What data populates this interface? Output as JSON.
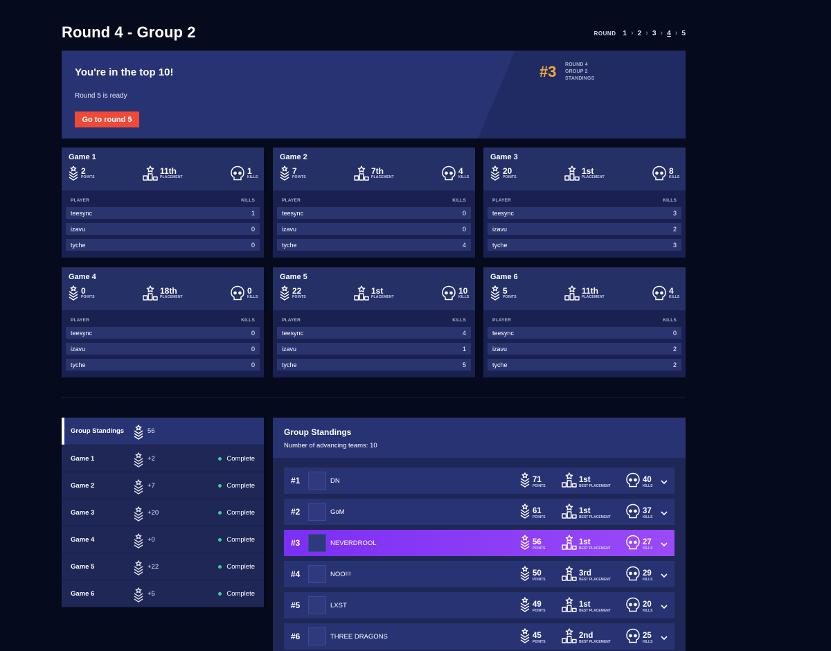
{
  "header": {
    "title": "Round 4 - Group 2",
    "round_label": "ROUND",
    "rounds": [
      "1",
      "2",
      "3",
      "4",
      "5"
    ],
    "active_round": "4"
  },
  "banner": {
    "headline": "You're in the top 10!",
    "subtext": "Round 5 is ready",
    "button": "Go to round 5",
    "rank": "#3",
    "rank_lines": [
      "ROUND 4",
      "GROUP 2",
      "STANDINGS"
    ]
  },
  "labels": {
    "points": "POINTS",
    "placement": "PLACEMENT",
    "kills": "KILLS",
    "player": "PLAYER",
    "best_placement": "BEST PLACEMENT"
  },
  "games": [
    {
      "name": "Game 1",
      "points": "2",
      "placement": "11th",
      "kills": "1",
      "players": [
        {
          "name": "teesync",
          "kills": "1"
        },
        {
          "name": "izavu",
          "kills": "0"
        },
        {
          "name": "tyche",
          "kills": "0"
        }
      ]
    },
    {
      "name": "Game 2",
      "points": "7",
      "placement": "7th",
      "kills": "4",
      "players": [
        {
          "name": "teesync",
          "kills": "0"
        },
        {
          "name": "izavu",
          "kills": "0"
        },
        {
          "name": "tyche",
          "kills": "4"
        }
      ]
    },
    {
      "name": "Game 3",
      "points": "20",
      "placement": "1st",
      "kills": "8",
      "players": [
        {
          "name": "teesync",
          "kills": "3"
        },
        {
          "name": "izavu",
          "kills": "2"
        },
        {
          "name": "tyche",
          "kills": "3"
        }
      ]
    },
    {
      "name": "Game 4",
      "points": "0",
      "placement": "18th",
      "kills": "0",
      "players": [
        {
          "name": "teesync",
          "kills": "0"
        },
        {
          "name": "izavu",
          "kills": "0"
        },
        {
          "name": "tyche",
          "kills": "0"
        }
      ]
    },
    {
      "name": "Game 5",
      "points": "22",
      "placement": "1st",
      "kills": "10",
      "players": [
        {
          "name": "teesync",
          "kills": "4"
        },
        {
          "name": "izavu",
          "kills": "1"
        },
        {
          "name": "tyche",
          "kills": "5"
        }
      ]
    },
    {
      "name": "Game 6",
      "points": "5",
      "placement": "11th",
      "kills": "4",
      "players": [
        {
          "name": "teesync",
          "kills": "0"
        },
        {
          "name": "izavu",
          "kills": "2"
        },
        {
          "name": "tyche",
          "kills": "2"
        }
      ]
    }
  ],
  "sidebar": {
    "items": [
      {
        "name": "Group Standings",
        "points": "56",
        "status": ""
      },
      {
        "name": "Game 1",
        "points": "+2",
        "status": "Complete"
      },
      {
        "name": "Game 2",
        "points": "+7",
        "status": "Complete"
      },
      {
        "name": "Game 3",
        "points": "+20",
        "status": "Complete"
      },
      {
        "name": "Game 4",
        "points": "+0",
        "status": "Complete"
      },
      {
        "name": "Game 5",
        "points": "+22",
        "status": "Complete"
      },
      {
        "name": "Game 6",
        "points": "+5",
        "status": "Complete"
      }
    ]
  },
  "standings": {
    "title": "Group Standings",
    "advancing": "Number of advancing teams: 10",
    "teams": [
      {
        "rank": "#1",
        "name": "DN",
        "points": "71",
        "best": "1st",
        "kills": "40"
      },
      {
        "rank": "#2",
        "name": "GoM",
        "points": "61",
        "best": "1st",
        "kills": "37"
      },
      {
        "rank": "#3",
        "name": "NEVERDROOL",
        "points": "56",
        "best": "1st",
        "kills": "27"
      },
      {
        "rank": "#4",
        "name": "NOO!!!",
        "points": "50",
        "best": "3rd",
        "kills": "29"
      },
      {
        "rank": "#5",
        "name": "LXST",
        "points": "49",
        "best": "1st",
        "kills": "20"
      },
      {
        "rank": "#6",
        "name": "THREE DRAGONS",
        "points": "45",
        "best": "2nd",
        "kills": "25"
      }
    ]
  },
  "colors": {
    "background": "#050a1c",
    "panel": "#283373",
    "accent_button": "#ee4a37",
    "rank_highlight": "#f2a93b",
    "my_team": "#8a3cf5",
    "complete_dot": "#35d68e"
  }
}
